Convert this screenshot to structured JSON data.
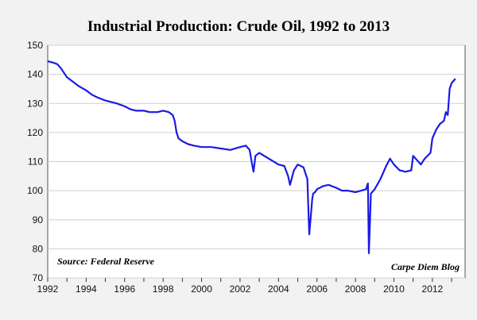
{
  "chart_data": {
    "type": "line",
    "title": "Industrial Production: Crude Oil, 1992 to 2013",
    "source_note": "Source: Federal Reserve",
    "credit_note": "Carpe Diem Blog",
    "xlabel": "",
    "ylabel": "",
    "xlim": [
      1992,
      2013.7
    ],
    "ylim": [
      70,
      150
    ],
    "x_ticks": [
      1992,
      1994,
      1996,
      1998,
      2000,
      2002,
      2004,
      2006,
      2008,
      2010,
      2012
    ],
    "y_ticks": [
      70,
      80,
      90,
      100,
      110,
      120,
      130,
      140,
      150
    ],
    "grid": true,
    "line_color": "#1a1ae6",
    "series": [
      {
        "x": [
          1992.0,
          1992.3,
          1992.5,
          1992.7,
          1993.0,
          1993.3,
          1993.6,
          1994.0,
          1994.3,
          1994.6,
          1995.0,
          1995.3,
          1995.6,
          1996.0,
          1996.3,
          1996.6,
          1997.0,
          1997.3,
          1997.7,
          1998.0,
          1998.3,
          1998.5,
          1998.6,
          1998.7,
          1998.8,
          1999.0,
          1999.3,
          1999.6,
          2000.0,
          2000.5,
          2001.0,
          2001.5,
          2002.0,
          2002.3,
          2002.5,
          2002.6,
          2002.7,
          2002.8,
          2003.0,
          2003.5,
          2004.0,
          2004.3,
          2004.5,
          2004.6,
          2004.8,
          2005.0,
          2005.3,
          2005.5,
          2005.6,
          2005.7,
          2005.75,
          2005.8,
          2005.9,
          2006.0,
          2006.3,
          2006.6,
          2007.0,
          2007.3,
          2007.6,
          2008.0,
          2008.3,
          2008.55,
          2008.65,
          2008.7,
          2008.75,
          2008.8,
          2009.0,
          2009.3,
          2009.6,
          2009.8,
          2010.0,
          2010.3,
          2010.6,
          2010.9,
          2011.0,
          2011.2,
          2011.4,
          2011.6,
          2011.9,
          2012.0,
          2012.2,
          2012.4,
          2012.6,
          2012.7,
          2012.8,
          2012.9,
          2013.0,
          2013.2
        ],
        "values": [
          144.5,
          144,
          143.5,
          142,
          139,
          137.5,
          136,
          134.5,
          133,
          132,
          131,
          130.5,
          130,
          129,
          128,
          127.5,
          127.5,
          127,
          127,
          127.5,
          127,
          126,
          124,
          120,
          118,
          117,
          116,
          115.5,
          115,
          115,
          114.5,
          114,
          115,
          115.5,
          114,
          110,
          106.5,
          112,
          113,
          111,
          109,
          108.5,
          105,
          102,
          107,
          109,
          108,
          104,
          85,
          93,
          97,
          99,
          99.5,
          100.5,
          101.5,
          102,
          101,
          100,
          100,
          99.5,
          100,
          100.5,
          102.5,
          78.5,
          88,
          99,
          100.5,
          104,
          108.5,
          111,
          109,
          107,
          106.5,
          107,
          112,
          110.5,
          109,
          111,
          113,
          118,
          121,
          123,
          124,
          127,
          126,
          135,
          137,
          138.5
        ]
      }
    ]
  }
}
